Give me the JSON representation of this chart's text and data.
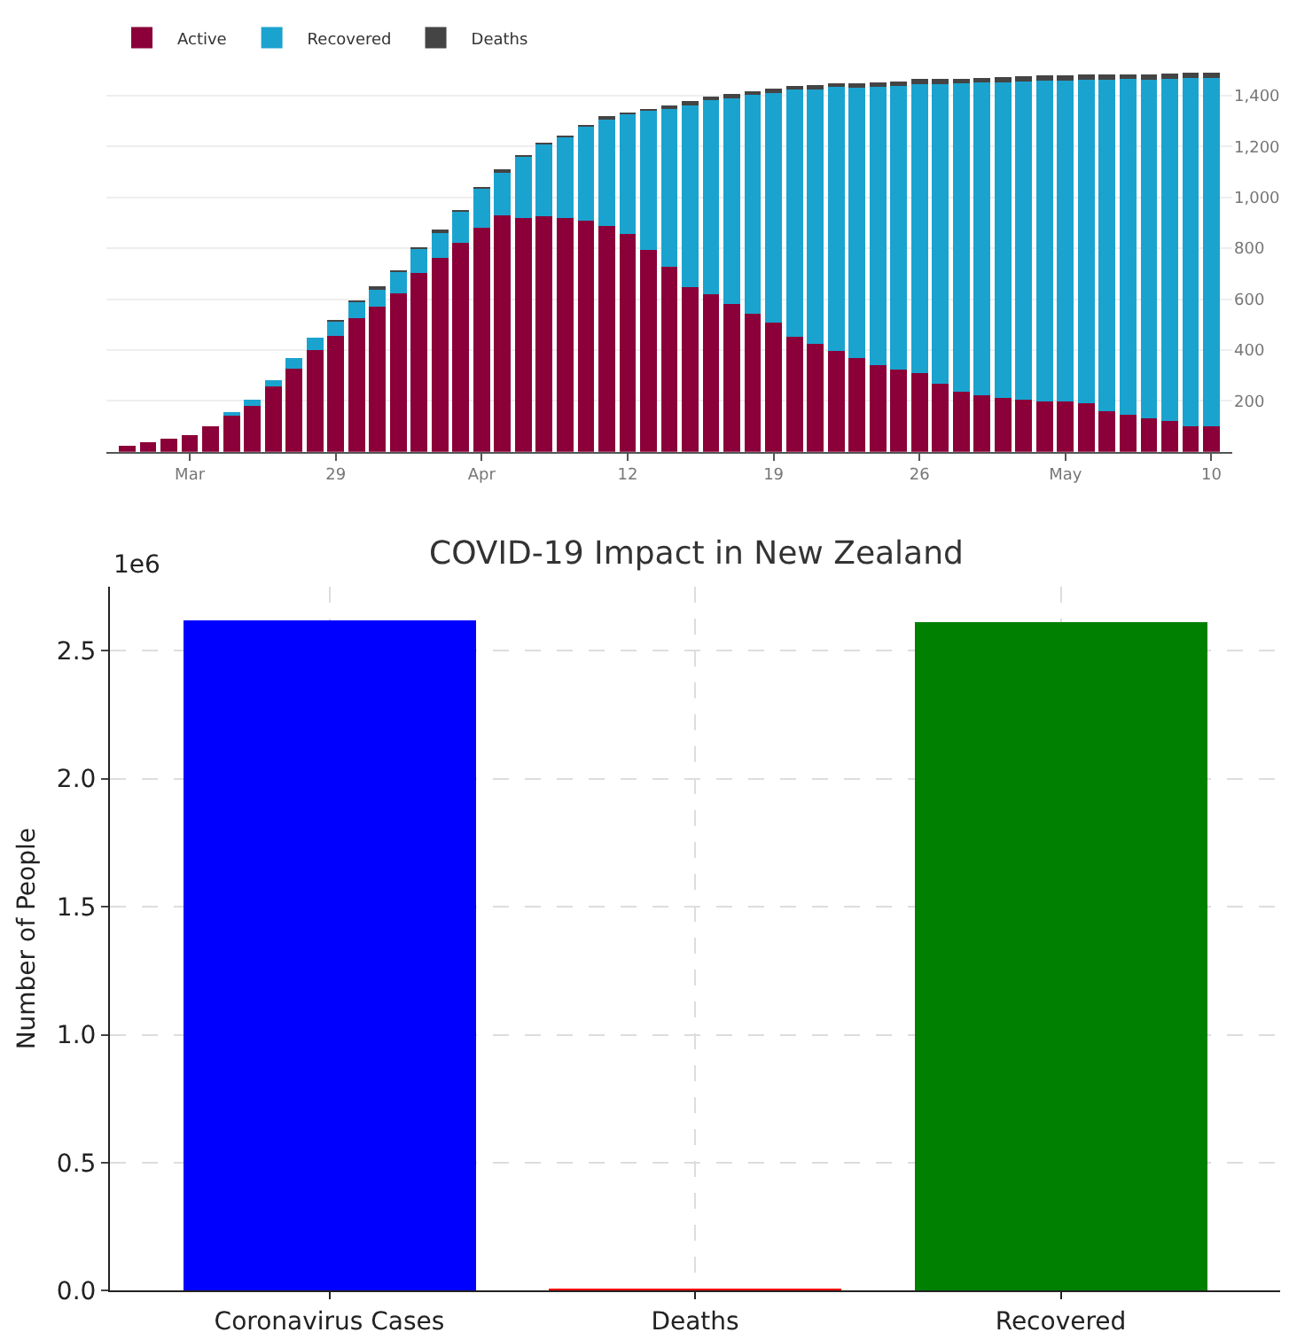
{
  "chart_data": [
    {
      "type": "bar",
      "stacked": true,
      "legend": "top left",
      "grid": "y",
      "x": [
        "--03-19",
        "--03-20",
        "--03-21",
        "--03-22",
        "--03-23",
        "--03-24",
        "--03-25",
        "--03-26",
        "--03-27",
        "--03-28",
        "--03-29",
        "--03-30",
        "--03-31",
        "--04-01",
        "--04-02",
        "--04-03",
        "--04-04",
        "--04-05",
        "--04-06",
        "--04-07",
        "--04-08",
        "--04-09",
        "--04-10",
        "--04-11",
        "--04-12",
        "--04-13",
        "--04-14",
        "--04-15",
        "--04-16",
        "--04-17",
        "--04-18",
        "--04-19",
        "--04-20",
        "--04-21",
        "--04-22",
        "--04-23",
        "--04-24",
        "--04-25",
        "--04-26",
        "--04-27",
        "--04-28",
        "--04-29",
        "--04-30",
        "--05-01",
        "--05-02",
        "--05-03",
        "--05-04",
        "--05-05",
        "--05-06",
        "--05-07",
        "--05-08",
        "--05-09",
        "--05-10"
      ],
      "xlim": [
        "--03-18",
        "--05-11"
      ],
      "xticks": [
        {
          "value": "--03-22",
          "label": "Mar"
        },
        {
          "value": "--03-29",
          "label": "29"
        },
        {
          "value": "--04-05",
          "label": "Apr"
        },
        {
          "value": "--04-12",
          "label": "12"
        },
        {
          "value": "--04-19",
          "label": "19"
        },
        {
          "value": "--04-26",
          "label": "26"
        },
        {
          "value": "--05-03",
          "label": "May"
        },
        {
          "value": "--05-10",
          "label": "10"
        }
      ],
      "ylim": [
        0,
        1500
      ],
      "yticks": [
        {
          "value": 200,
          "label": "200"
        },
        {
          "value": 400,
          "label": "400"
        },
        {
          "value": 600,
          "label": "600"
        },
        {
          "value": 800,
          "label": "800"
        },
        {
          "value": 1000,
          "label": "1,000"
        },
        {
          "value": 1200,
          "label": "1,200"
        },
        {
          "value": 1400,
          "label": "1,400"
        }
      ],
      "series": [
        {
          "name": "Active",
          "color": "#8b0038",
          "values": [
            24,
            38,
            51,
            67,
            102,
            142,
            180,
            256,
            327,
            400,
            456,
            524,
            571,
            624,
            704,
            762,
            822,
            882,
            929,
            918,
            927,
            920,
            909,
            887,
            856,
            794,
            726,
            646,
            619,
            580,
            542,
            507,
            451,
            425,
            398,
            367,
            341,
            323,
            308,
            268,
            237,
            223,
            212,
            206,
            199,
            199,
            190,
            161,
            146,
            133,
            122,
            100,
            100
          ]
        },
        {
          "name": "Recovered",
          "color": "#1ba3cf",
          "values": [
            0,
            0,
            0,
            0,
            0,
            14,
            24,
            26,
            42,
            49,
            56,
            64,
            72,
            84,
            95,
            104,
            126,
            155,
            174,
            241,
            281,
            321,
            373,
            422,
            471,
            546,
            625,
            721,
            766,
            813,
            864,
            908,
            975,
            1004,
            1035,
            1064,
            1093,
            1115,
            1137,
            1177,
            1211,
            1227,
            1240,
            1250,
            1261,
            1261,
            1272,
            1301,
            1318,
            1330,
            1344,
            1368,
            1370
          ]
        },
        {
          "name": "Deaths",
          "color": "#444444",
          "values": [
            0,
            0,
            0,
            0,
            0,
            0,
            0,
            0,
            0,
            0,
            1,
            1,
            1,
            1,
            1,
            1,
            1,
            1,
            1,
            1,
            1,
            1,
            2,
            4,
            4,
            5,
            9,
            11,
            11,
            12,
            12,
            12,
            12,
            13,
            14,
            16,
            17,
            18,
            19,
            19,
            19,
            19,
            19,
            20,
            20,
            20,
            20,
            20,
            20,
            21,
            21,
            21,
            21
          ]
        }
      ]
    },
    {
      "type": "bar",
      "title": "COVID-19 Impact in New Zealand",
      "ylabel": "Number of People",
      "grid": true,
      "annotations": [
        "1e6"
      ],
      "categories": [
        "Coronavirus Cases",
        "Deaths",
        "Recovered"
      ],
      "values": [
        2.62,
        0.004,
        2.611
      ],
      "colors": [
        "#0000ff",
        "#ff0000",
        "#008000"
      ],
      "ylim": [
        0,
        2.75
      ],
      "yticks": [
        {
          "value": 0,
          "label": "0.0"
        },
        0.5,
        {
          "value": 1,
          "label": "1.0"
        },
        1.5,
        {
          "value": 2,
          "label": "2.0"
        },
        2.5
      ]
    }
  ]
}
